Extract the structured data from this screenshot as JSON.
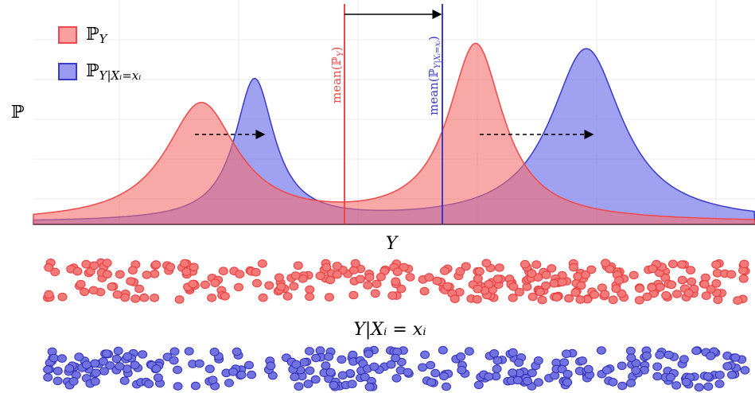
{
  "legend": [
    {
      "symbol": "ℙ",
      "subscript": "Y"
    },
    {
      "symbol": "ℙ",
      "subscript": "Y|Xᵢ=xᵢ"
    }
  ],
  "y_axis_label": "ℙ",
  "x_axis_label": "Y",
  "mean_labels": [
    {
      "symbol": "mean(ℙ",
      "subscript": "Y",
      "close": ")"
    },
    {
      "symbol": "mean(ℙ",
      "subscript": "Y|Xᵢ=xᵢ",
      "close": ")"
    }
  ],
  "conditional_label": "Y|Xᵢ = xᵢ"
}
